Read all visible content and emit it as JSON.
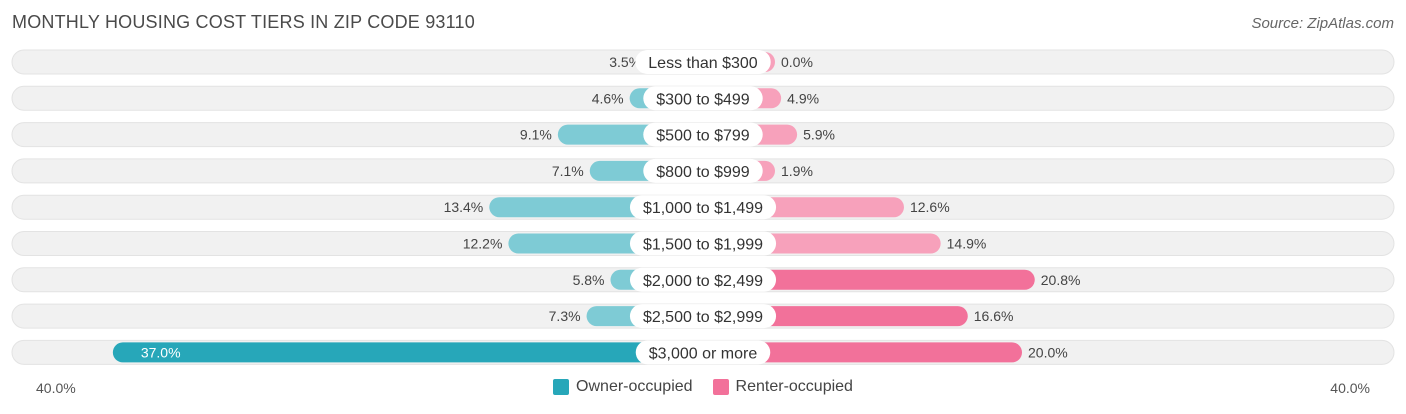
{
  "header": {
    "title": "MONTHLY HOUSING COST TIERS IN ZIP CODE 93110",
    "source": "Source: ZipAtlas.com"
  },
  "axis": {
    "left_label": "40.0%",
    "right_label": "40.0%"
  },
  "legend": {
    "owner_label": "Owner-occupied",
    "renter_label": "Renter-occupied"
  },
  "colors": {
    "owner": "#7ecbd5",
    "owner_strong": "#27a7b9",
    "renter": "#f7a1bb",
    "renter_strong": "#f2719a",
    "track": "#efefef"
  },
  "chart_data": {
    "type": "bar",
    "orientation": "diverging-horizontal",
    "title": "MONTHLY HOUSING COST TIERS IN ZIP CODE 93110",
    "xlim": [
      -40,
      40
    ],
    "categories": [
      "Less than $300",
      "$300 to $499",
      "$500 to $799",
      "$800 to $999",
      "$1,000 to $1,499",
      "$1,500 to $1,999",
      "$2,000 to $2,499",
      "$2,500 to $2,999",
      "$3,000 or more"
    ],
    "series": [
      {
        "name": "Owner-occupied",
        "side": "left",
        "values": [
          3.5,
          4.6,
          9.1,
          7.1,
          13.4,
          12.2,
          5.8,
          7.3,
          37.0
        ]
      },
      {
        "name": "Renter-occupied",
        "side": "right",
        "values": [
          0.0,
          4.9,
          5.9,
          1.9,
          12.6,
          14.9,
          20.8,
          16.6,
          20.0
        ]
      }
    ],
    "legend_position": "bottom-center"
  }
}
